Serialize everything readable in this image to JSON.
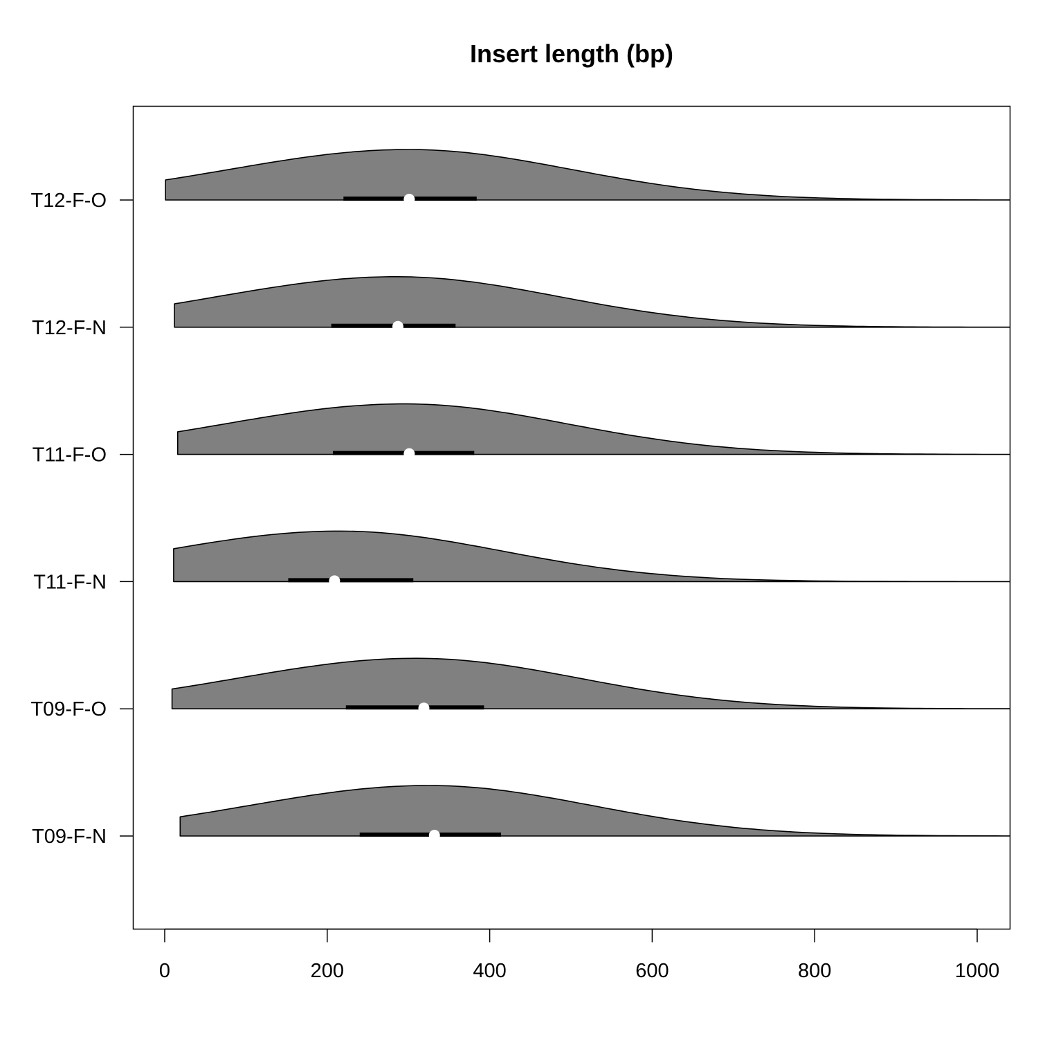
{
  "chart_data": {
    "type": "violin",
    "orientation": "horizontal",
    "title": "Insert length (bp)",
    "xlabel": "",
    "ylabel": "",
    "xlim": [
      -20,
      1040
    ],
    "xticks": [
      0,
      200,
      400,
      600,
      800,
      1000
    ],
    "grid": false,
    "fill_color": "#808080",
    "series": [
      {
        "name": "T12-F-O",
        "min": 1,
        "q1": 220,
        "median": 301,
        "q3": 384,
        "mode": 300,
        "max": 1040
      },
      {
        "name": "T12-F-N",
        "min": 12,
        "q1": 205,
        "median": 287,
        "q3": 358,
        "mode": 285,
        "max": 1040
      },
      {
        "name": "T11-F-O",
        "min": 16,
        "q1": 207,
        "median": 301,
        "q3": 381,
        "mode": 295,
        "max": 1040
      },
      {
        "name": "T11-F-N",
        "min": 11,
        "q1": 152,
        "median": 209,
        "q3": 306,
        "mode": 215,
        "max": 1040
      },
      {
        "name": "T09-F-O",
        "min": 9,
        "q1": 223,
        "median": 319,
        "q3": 393,
        "mode": 310,
        "max": 1040
      },
      {
        "name": "T09-F-N",
        "min": 19,
        "q1": 240,
        "median": 332,
        "q3": 414,
        "mode": 325,
        "max": 1040
      }
    ]
  }
}
